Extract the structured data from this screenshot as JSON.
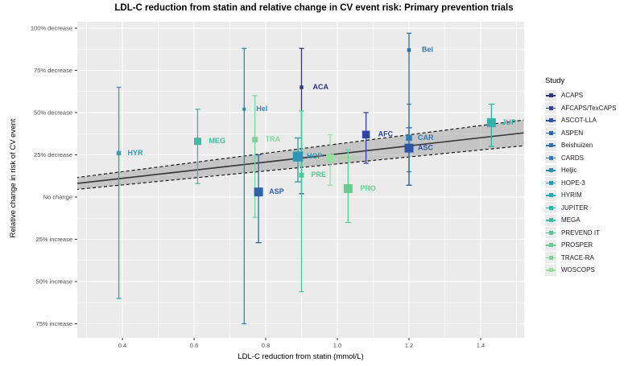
{
  "chart_data": {
    "type": "scatter",
    "title": "LDL-C reduction from statin and relative change in CV event risk: Primary prevention trials",
    "xlabel": "LDL-C reduction from statin (mmol/L)",
    "ylabel": "Relative change in risk of CV event",
    "grid": true,
    "legend_position": "right",
    "x_axis": {
      "tick_values": [
        0.4,
        0.6,
        0.8,
        1.0,
        1.2,
        1.4
      ],
      "tick_labels": [
        "0.4",
        "0.6",
        "0.8",
        "1.0",
        "1.2",
        "1.4"
      ],
      "minor_tick_values": [
        0.3,
        0.5,
        0.7,
        0.9,
        1.1,
        1.3,
        1.5
      ],
      "range": [
        0.27,
        1.52
      ]
    },
    "y_axis": {
      "tick_values_pct": [
        -100,
        -75,
        -50,
        -25,
        0,
        25,
        50,
        75
      ],
      "tick_labels": [
        "100% decrease",
        "75% decrease",
        "50% decrease",
        "25% decrease",
        "No change",
        "25% increase",
        "50% increase",
        "75% increase"
      ],
      "minor_tick_values_pct": [
        -87.5,
        -62.5,
        -37.5,
        -12.5,
        12.5,
        37.5,
        62.5
      ],
      "range_pct": [
        -104,
        83
      ]
    },
    "series": [
      {
        "study": "ACAPS",
        "label": "ACA",
        "color": "#33377C",
        "x": 0.9,
        "y_pct": -65,
        "ci_pct": [
          -88,
          -2
        ],
        "size": 4.5,
        "label_dx": 14
      },
      {
        "study": "AFCAPS/TexCAPS",
        "label": "AFC",
        "color": "#2F4699",
        "x": 1.08,
        "y_pct": -37,
        "ci_pct": [
          -50,
          -20
        ],
        "size": 9.5,
        "label_dx": 15
      },
      {
        "study": "ASCOT-LLA",
        "label": "ASC",
        "color": "#2E54A4",
        "x": 1.2,
        "y_pct": -29,
        "ci_pct": [
          -41,
          -7
        ],
        "size": 11,
        "label_dx": 11
      },
      {
        "study": "ASPEN",
        "label": "ASP",
        "color": "#2E62A9",
        "x": 0.78,
        "y_pct": -3,
        "ci_pct": [
          -25,
          27
        ],
        "size": 11,
        "label_dx": 13
      },
      {
        "study": "Beishuizen",
        "label": "Bei",
        "color": "#2F70AD",
        "x": 1.2,
        "y_pct": -87,
        "ci_pct": [
          -97,
          -7
        ],
        "size": 4.5,
        "label_dx": 16
      },
      {
        "study": "CARDS",
        "label": "CAR",
        "color": "#307DB1",
        "x": 1.2,
        "y_pct": -35,
        "ci_pct": [
          -55,
          -15
        ],
        "size": 7.5,
        "label_dx": 11
      },
      {
        "study": "Heljic",
        "label": "Hel",
        "color": "#318AB3",
        "x": 0.74,
        "y_pct": -52,
        "ci_pct": [
          -88,
          75
        ],
        "size": 4,
        "label_dx": 15
      },
      {
        "study": "HOPE-3",
        "label": "HOP",
        "color": "#2F97B5",
        "x": 0.89,
        "y_pct": -24,
        "ci_pct": [
          -35,
          -9
        ],
        "size": 12.5,
        "label_dx": 11
      },
      {
        "study": "HYRIM",
        "label": "HYR",
        "color": "#2CA4B3",
        "x": 0.39,
        "y_pct": -26,
        "ci_pct": [
          -65,
          60
        ],
        "size": 5.5,
        "label_dx": 11
      },
      {
        "study": "JUPITER",
        "label": "JUP",
        "color": "#2FB1AC",
        "x": 1.43,
        "y_pct": -44,
        "ci_pct": [
          -55,
          -30
        ],
        "size": 11,
        "label_dx": 13
      },
      {
        "study": "MEGA",
        "label": "MEG",
        "color": "#3DBCA1",
        "x": 0.61,
        "y_pct": -33,
        "ci_pct": [
          -52,
          -8
        ],
        "size": 9,
        "label_dx": 14
      },
      {
        "study": "PREVEND IT",
        "label": "PRE",
        "color": "#52C697",
        "x": 0.9,
        "y_pct": -13,
        "ci_pct": [
          -51,
          56
        ],
        "size": 6,
        "label_dx": 12
      },
      {
        "study": "PROSPER",
        "label": "PRO",
        "color": "#67CD94",
        "x": 1.03,
        "y_pct": -5,
        "ci_pct": [
          -28,
          15
        ],
        "size": 11,
        "label_dx": 15
      },
      {
        "study": "TRACE-RA",
        "label": "TRA",
        "color": "#7ED597",
        "x": 0.77,
        "y_pct": -34,
        "ci_pct": [
          -60,
          12
        ],
        "size": 7,
        "label_dx": 13
      },
      {
        "study": "WOSCOPS",
        "label": "WOS",
        "color": "#97DFA1",
        "x": 0.98,
        "y_pct": -23,
        "ci_pct": [
          -37,
          -7
        ],
        "size": 10,
        "label_dx": 10
      }
    ],
    "trend": {
      "x": [
        0.27,
        1.52
      ],
      "y_pct": [
        -8,
        -38
      ],
      "band_halfwidth_pct": [
        3.5,
        7.6
      ]
    }
  },
  "legend": {
    "title": "Study"
  },
  "colors": {
    "panel_bg": "#EBEBEB",
    "gridline": "#FFFFFF",
    "tick_text": "#4D4D4D",
    "trend_line": "#3C3C3C",
    "trend_dash": "#1A1A1A",
    "band_fill": "rgba(125,125,125,0.35)"
  }
}
